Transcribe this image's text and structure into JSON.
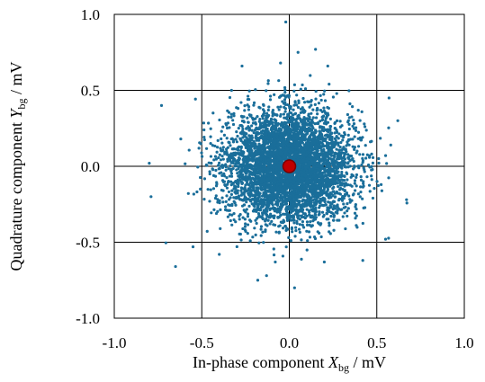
{
  "chart_data": {
    "type": "scatter",
    "title": "",
    "xlabel": {
      "prefix": "In-phase component ",
      "var": "X",
      "sub": "bg",
      "suffix": " / mV"
    },
    "ylabel": {
      "prefix": "Quadrature component ",
      "var": "Y",
      "sub": "bg",
      "suffix": " / mV"
    },
    "xlim": [
      -1.0,
      1.0
    ],
    "ylim": [
      -1.0,
      1.0
    ],
    "xticks": [
      "-1.0",
      "-0.5",
      "0.0",
      "0.5",
      "1.0"
    ],
    "yticks": [
      "1.0",
      "0.5",
      "0.0",
      "-0.5",
      "-1.0"
    ],
    "grid": true,
    "series": [
      {
        "color": "#1a6e9a",
        "distribution": {
          "mean_x": 0.0,
          "mean_y": 0.0,
          "std_x": 0.18,
          "std_y": 0.18,
          "n": 5000
        },
        "outliers": [
          {
            "x": -0.02,
            "y": 0.95
          },
          {
            "x": 0.15,
            "y": 0.77
          },
          {
            "x": 0.05,
            "y": 0.75
          },
          {
            "x": -0.27,
            "y": 0.66
          },
          {
            "x": -0.05,
            "y": 0.68
          },
          {
            "x": 0.22,
            "y": 0.66
          },
          {
            "x": -0.73,
            "y": 0.4
          },
          {
            "x": 0.57,
            "y": 0.45
          },
          {
            "x": -0.8,
            "y": 0.02
          },
          {
            "x": -0.79,
            "y": -0.2
          },
          {
            "x": 0.67,
            "y": -0.22
          },
          {
            "x": -0.65,
            "y": -0.66
          },
          {
            "x": -0.55,
            "y": -0.53
          },
          {
            "x": -0.4,
            "y": -0.58
          },
          {
            "x": -0.18,
            "y": -0.75
          },
          {
            "x": -0.13,
            "y": -0.72
          },
          {
            "x": 0.03,
            "y": -0.8
          },
          {
            "x": -0.08,
            "y": -0.63
          },
          {
            "x": 0.2,
            "y": -0.63
          },
          {
            "x": 0.55,
            "y": -0.48
          },
          {
            "x": 0.62,
            "y": 0.3
          },
          {
            "x": -0.62,
            "y": 0.18
          },
          {
            "x": 0.42,
            "y": -0.62
          },
          {
            "x": -0.33,
            "y": 0.5
          }
        ]
      }
    ],
    "highlight": {
      "x": 0.0,
      "y": 0.0,
      "color": "#c00000"
    }
  }
}
